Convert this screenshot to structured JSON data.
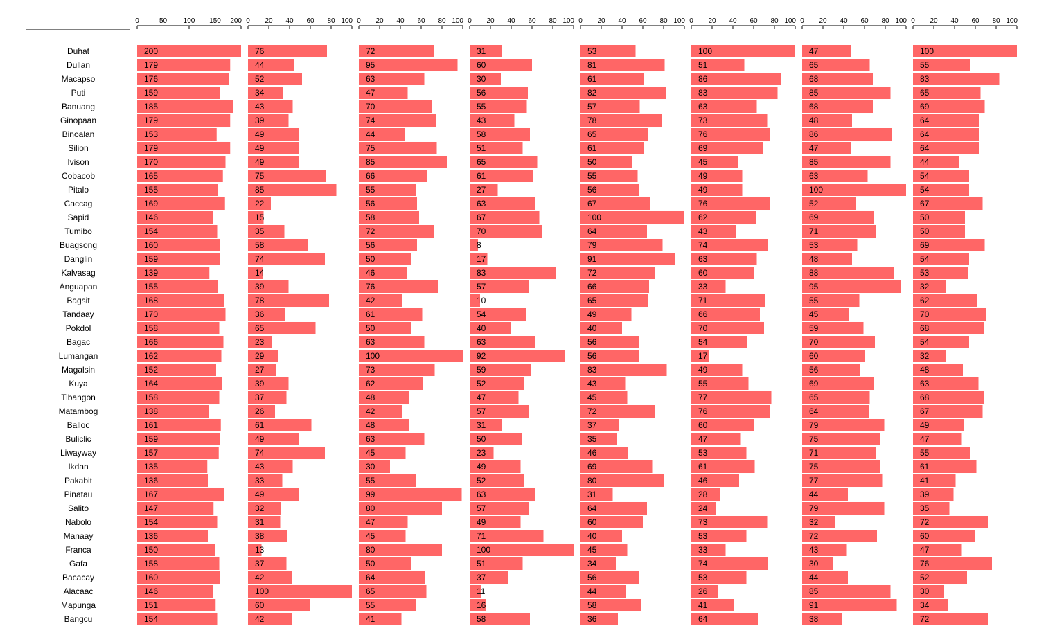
{
  "chart_data": {
    "type": "bar",
    "orientation": "horizontal",
    "bar_color": "#ff6666",
    "categories": [
      "Duhat",
      "Dullan",
      "Macapso",
      "Puti",
      "Banuang",
      "Ginopaan",
      "Binoalan",
      "Silion",
      "Ivison",
      "Cobacob",
      "Pitalo",
      "Caccag",
      "Sapid",
      "Tumibo",
      "Buagsong",
      "Danglin",
      "Kalvasag",
      "Anguapan",
      "Bagsit",
      "Tandaay",
      "Pokdol",
      "Bagac",
      "Lumangan",
      "Magalsin",
      "Kuya",
      "Tibangon",
      "Matambog",
      "Balloc",
      "Buliclic",
      "Liwayway",
      "Ikdan",
      "Pakabit",
      "Pinatau",
      "Salito",
      "Nabolo",
      "Manaay",
      "Franca",
      "Gafa",
      "Bacacay",
      "Alacaac",
      "Mapunga",
      "Bangcu"
    ],
    "panels": [
      {
        "xlim": [
          0,
          200
        ],
        "ticks": [
          0,
          50,
          100,
          150,
          200
        ],
        "values": [
          200,
          179,
          176,
          159,
          185,
          179,
          153,
          179,
          170,
          165,
          155,
          169,
          146,
          154,
          160,
          159,
          139,
          155,
          168,
          170,
          158,
          166,
          162,
          152,
          164,
          158,
          138,
          161,
          159,
          157,
          135,
          136,
          167,
          147,
          154,
          136,
          150,
          158,
          160,
          146,
          151,
          154
        ]
      },
      {
        "xlim": [
          0,
          100
        ],
        "ticks": [
          0,
          20,
          40,
          60,
          80,
          100
        ],
        "values": [
          76,
          44,
          52,
          34,
          43,
          39,
          49,
          49,
          49,
          75,
          85,
          22,
          15,
          35,
          58,
          74,
          14,
          39,
          78,
          36,
          65,
          23,
          29,
          27,
          39,
          37,
          26,
          61,
          49,
          74,
          43,
          33,
          49,
          32,
          31,
          38,
          13,
          37,
          42,
          100,
          60,
          42
        ]
      },
      {
        "xlim": [
          0,
          100
        ],
        "ticks": [
          0,
          20,
          40,
          60,
          80,
          100
        ],
        "values": [
          72,
          95,
          63,
          47,
          70,
          74,
          44,
          75,
          85,
          66,
          55,
          56,
          58,
          72,
          56,
          50,
          46,
          76,
          42,
          61,
          50,
          63,
          100,
          73,
          62,
          48,
          42,
          48,
          63,
          45,
          30,
          55,
          99,
          80,
          47,
          45,
          80,
          50,
          64,
          65,
          55,
          41
        ]
      },
      {
        "xlim": [
          0,
          100
        ],
        "ticks": [
          0,
          20,
          40,
          60,
          80,
          100
        ],
        "values": [
          31,
          60,
          30,
          56,
          55,
          43,
          58,
          51,
          65,
          61,
          27,
          63,
          67,
          70,
          8,
          17,
          83,
          57,
          10,
          54,
          40,
          63,
          92,
          59,
          52,
          47,
          57,
          31,
          50,
          23,
          49,
          52,
          63,
          57,
          49,
          71,
          100,
          51,
          37,
          11,
          16,
          58
        ]
      },
      {
        "xlim": [
          0,
          100
        ],
        "ticks": [
          0,
          20,
          40,
          60,
          80,
          100
        ],
        "values": [
          53,
          81,
          61,
          82,
          57,
          78,
          65,
          61,
          50,
          55,
          56,
          67,
          100,
          64,
          79,
          91,
          72,
          66,
          65,
          49,
          40,
          56,
          56,
          83,
          43,
          45,
          72,
          37,
          35,
          46,
          69,
          80,
          31,
          64,
          60,
          40,
          45,
          34,
          56,
          44,
          58,
          36
        ]
      },
      {
        "xlim": [
          0,
          100
        ],
        "ticks": [
          0,
          20,
          40,
          60,
          80,
          100
        ],
        "values": [
          100,
          51,
          86,
          83,
          63,
          73,
          76,
          69,
          45,
          49,
          49,
          76,
          62,
          43,
          74,
          63,
          60,
          33,
          71,
          66,
          70,
          54,
          17,
          49,
          55,
          77,
          76,
          60,
          47,
          53,
          61,
          46,
          28,
          24,
          73,
          53,
          33,
          74,
          53,
          26,
          41,
          64
        ]
      },
      {
        "xlim": [
          0,
          100
        ],
        "ticks": [
          0,
          20,
          40,
          60,
          80,
          100
        ],
        "values": [
          47,
          65,
          68,
          85,
          68,
          48,
          86,
          47,
          85,
          63,
          100,
          52,
          69,
          71,
          53,
          48,
          88,
          95,
          55,
          45,
          59,
          70,
          60,
          56,
          69,
          65,
          64,
          79,
          75,
          71,
          75,
          77,
          44,
          79,
          32,
          72,
          43,
          30,
          44,
          85,
          91,
          38
        ]
      },
      {
        "xlim": [
          0,
          100
        ],
        "ticks": [
          0,
          20,
          40,
          60,
          80,
          100
        ],
        "values": [
          100,
          55,
          83,
          65,
          69,
          64,
          64,
          64,
          44,
          54,
          54,
          67,
          50,
          50,
          69,
          54,
          53,
          32,
          62,
          70,
          68,
          54,
          32,
          48,
          63,
          68,
          67,
          49,
          47,
          55,
          61,
          41,
          39,
          35,
          72,
          60,
          47,
          76,
          52,
          30,
          34,
          72
        ]
      }
    ]
  }
}
